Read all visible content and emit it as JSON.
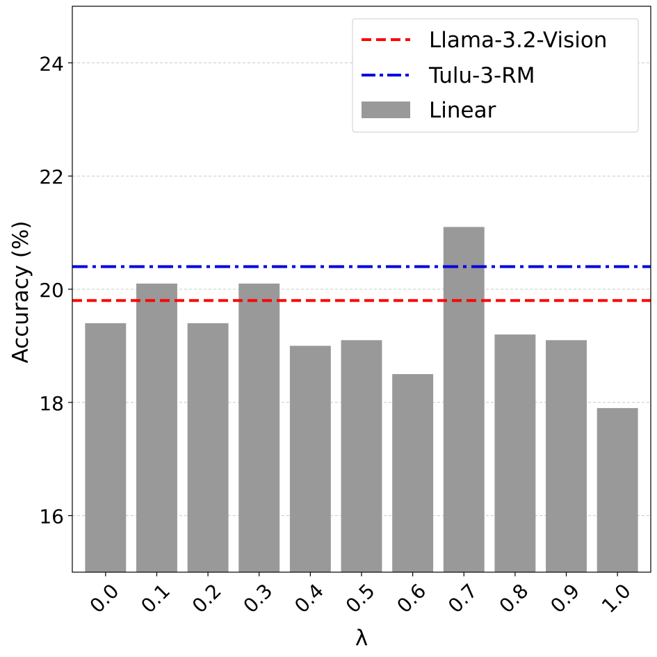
{
  "chart_data": {
    "type": "bar",
    "categories": [
      "0.0",
      "0.1",
      "0.2",
      "0.3",
      "0.4",
      "0.5",
      "0.6",
      "0.7",
      "0.8",
      "0.9",
      "1.0"
    ],
    "series": [
      {
        "name": "Linear",
        "values": [
          19.4,
          20.1,
          19.4,
          20.1,
          19.0,
          19.1,
          18.5,
          21.1,
          19.2,
          19.1,
          17.9
        ],
        "color": "#999999"
      }
    ],
    "reference_lines": [
      {
        "name": "Llama-3.2-Vision",
        "value": 19.8,
        "color": "#ff0000",
        "style": "dashed"
      },
      {
        "name": "Tulu-3-RM",
        "value": 20.4,
        "color": "#0000dd",
        "style": "dash-dot"
      }
    ],
    "xlabel": "λ",
    "ylabel": "Accuracy (%)",
    "ylim": [
      15,
      25
    ],
    "yticks": [
      16,
      18,
      20,
      22,
      24
    ],
    "grid": "y-dashed",
    "legend_position": "top-right",
    "legend": [
      "Llama-3.2-Vision",
      "Tulu-3-RM",
      "Linear"
    ]
  }
}
